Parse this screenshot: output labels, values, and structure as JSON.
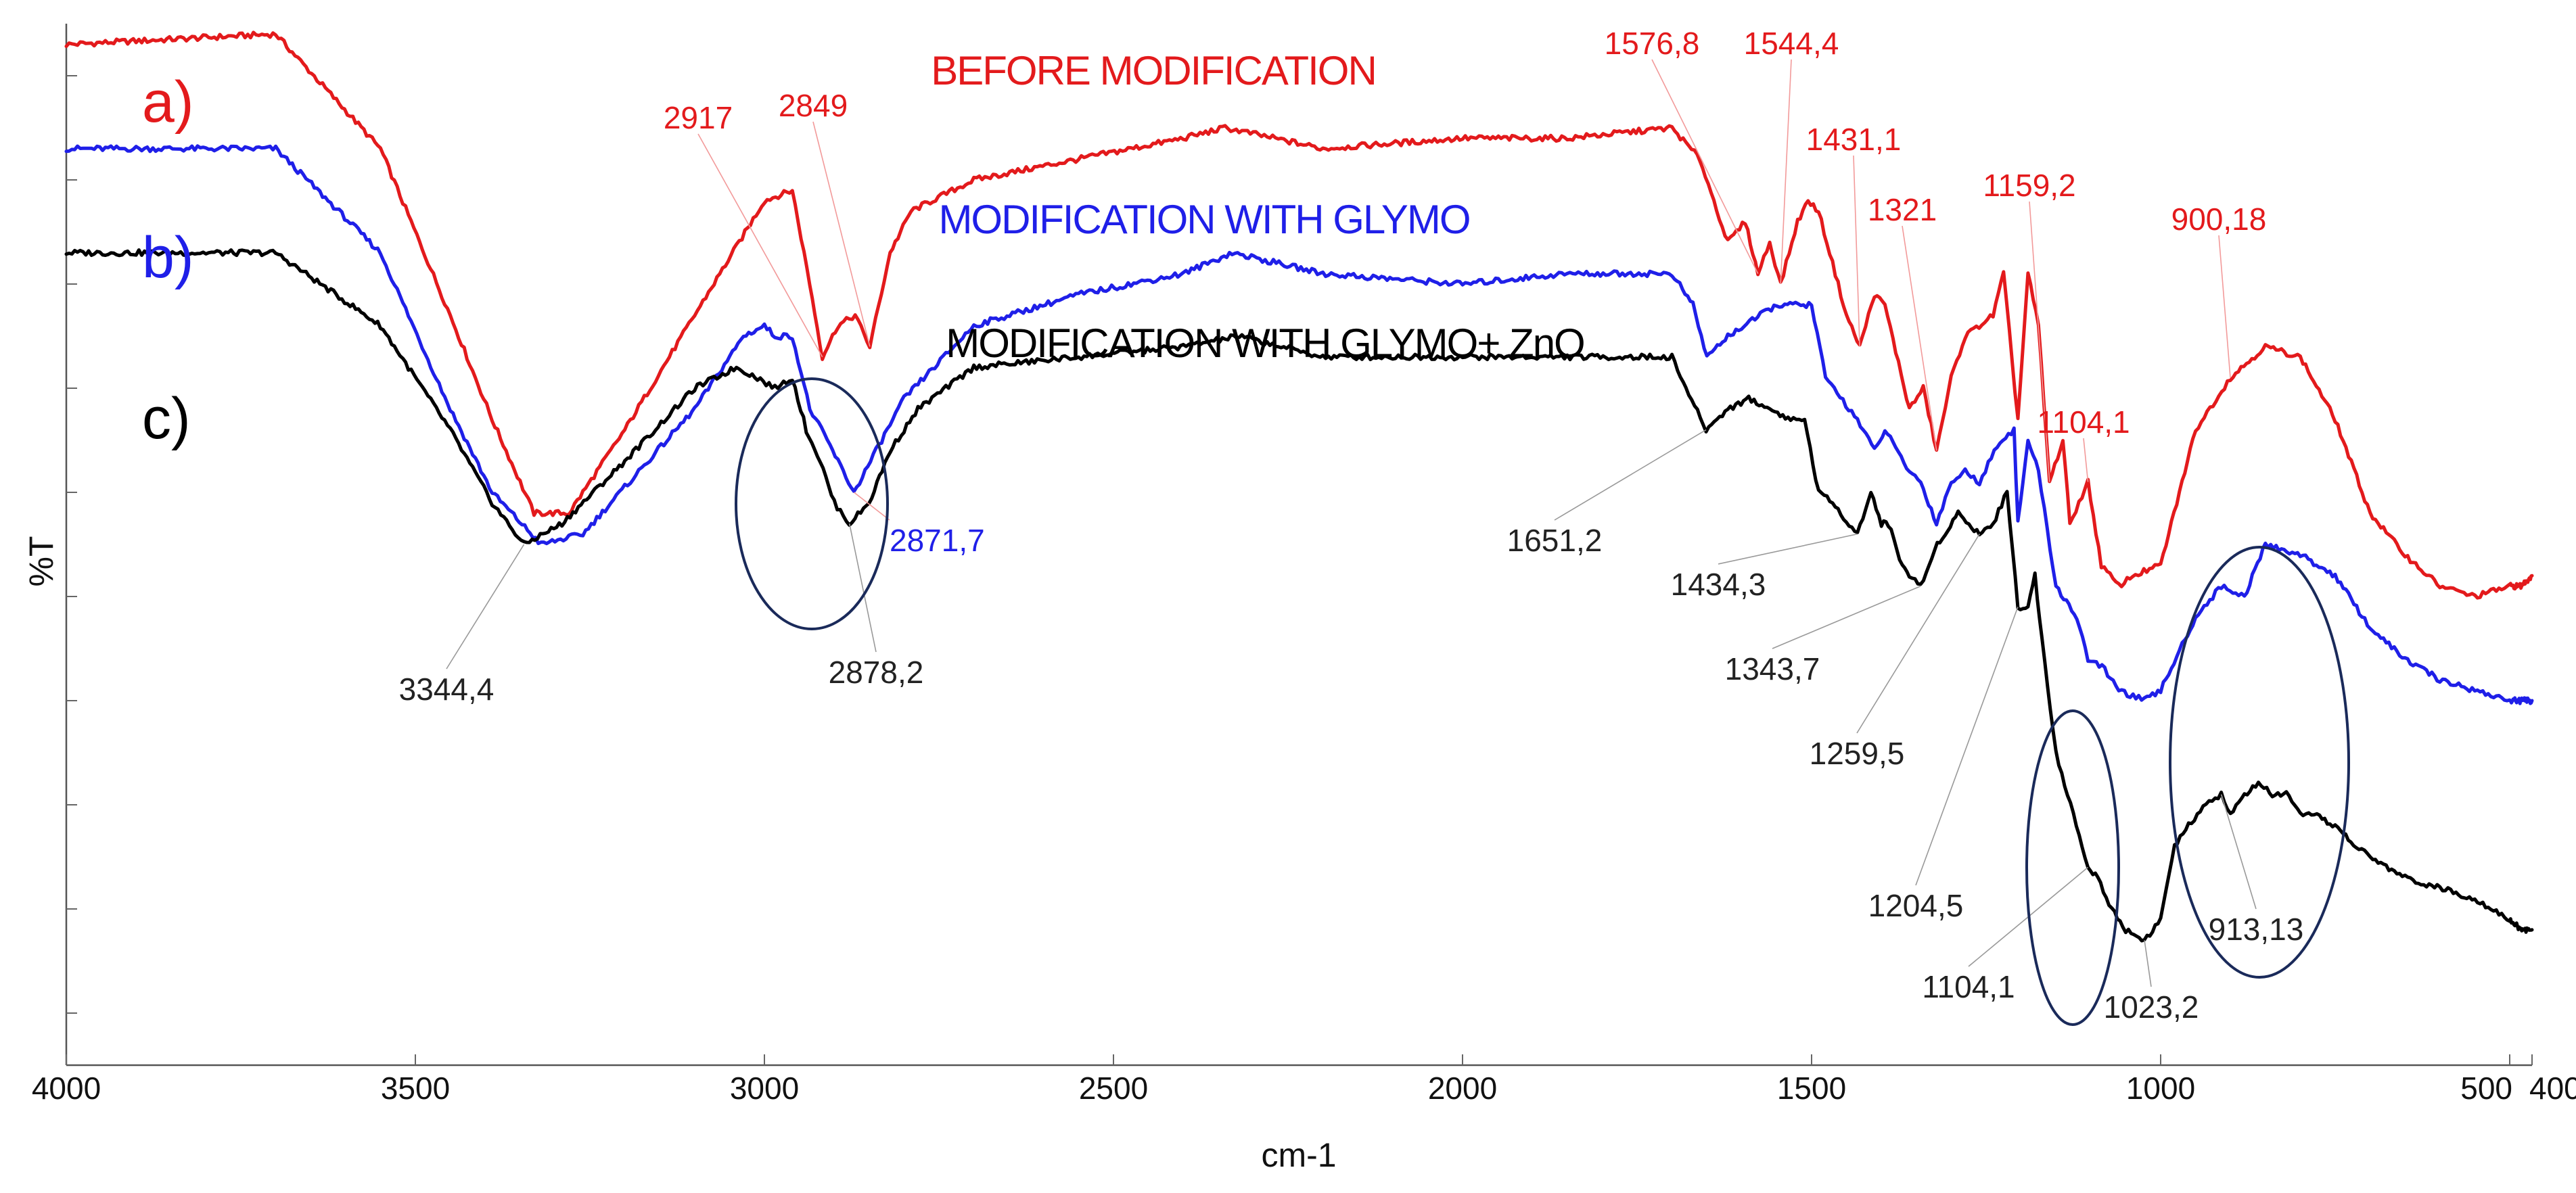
{
  "chart_data": {
    "type": "line",
    "xlabel": "cm-1",
    "ylabel": "%T",
    "xlim": [
      4000,
      400
    ],
    "x_ticks": [
      {
        "value": 4000,
        "label": "4000"
      },
      {
        "value": 3500,
        "label": "3500"
      },
      {
        "value": 3000,
        "label": "3000"
      },
      {
        "value": 2500,
        "label": "2500"
      },
      {
        "value": 2000,
        "label": "2000"
      },
      {
        "value": 1500,
        "label": "1500"
      },
      {
        "value": 1000,
        "label": "1000"
      },
      {
        "value": 500,
        "label": "500"
      },
      {
        "value": 400,
        "label": "400"
      }
    ],
    "series": [
      {
        "key": "a",
        "name": "BEFORE MODIFICATION",
        "label": "a)",
        "color": "#e31a1c",
        "points": [
          [
            4000,
            98
          ],
          [
            3700,
            99
          ],
          [
            3550,
            88
          ],
          [
            3450,
            72
          ],
          [
            3390,
            62
          ],
          [
            3330,
            53
          ],
          [
            3280,
            53
          ],
          [
            3200,
            61
          ],
          [
            3100,
            72
          ],
          [
            3000,
            83
          ],
          [
            2960,
            84
          ],
          [
            2935,
            75
          ],
          [
            2917,
            68
          ],
          [
            2895,
            71
          ],
          [
            2870,
            72
          ],
          [
            2849,
            69
          ],
          [
            2820,
            78
          ],
          [
            2790,
            82
          ],
          [
            2700,
            85
          ],
          [
            2550,
            87
          ],
          [
            2400,
            89
          ],
          [
            2340,
            90
          ],
          [
            2200,
            88
          ],
          [
            2000,
            89
          ],
          [
            1850,
            89
          ],
          [
            1700,
            90
          ],
          [
            1660,
            87
          ],
          [
            1640,
            83
          ],
          [
            1620,
            79
          ],
          [
            1595,
            81
          ],
          [
            1576.8,
            76
          ],
          [
            1560,
            79
          ],
          [
            1544.4,
            75
          ],
          [
            1520,
            81
          ],
          [
            1505,
            83
          ],
          [
            1490,
            82
          ],
          [
            1450,
            72
          ],
          [
            1431.1,
            69
          ],
          [
            1410,
            74
          ],
          [
            1395,
            73
          ],
          [
            1360,
            63
          ],
          [
            1340,
            65
          ],
          [
            1321,
            59
          ],
          [
            1300,
            66
          ],
          [
            1280,
            70
          ],
          [
            1240,
            72
          ],
          [
            1225,
            76
          ],
          [
            1204.5,
            62
          ],
          [
            1190,
            76
          ],
          [
            1175,
            71
          ],
          [
            1159.2,
            56
          ],
          [
            1140,
            60
          ],
          [
            1130,
            52
          ],
          [
            1104.1,
            56
          ],
          [
            1085,
            48
          ],
          [
            1060,
            46
          ],
          [
            1040,
            47
          ],
          [
            1000,
            48
          ],
          [
            950,
            61
          ],
          [
            900.18,
            66
          ],
          [
            850,
            69
          ],
          [
            800,
            68
          ],
          [
            750,
            62
          ],
          [
            700,
            53
          ],
          [
            650,
            49
          ],
          [
            600,
            46
          ],
          [
            550,
            45
          ],
          [
            500,
            46
          ],
          [
            450,
            46
          ],
          [
            400,
            47
          ]
        ]
      },
      {
        "key": "b",
        "name": "MODIFICATION WITH GLYMO",
        "label": "b)",
        "color": "#1f1fe8",
        "points": [
          [
            4000,
            88
          ],
          [
            3700,
            88
          ],
          [
            3550,
            78
          ],
          [
            3450,
            63
          ],
          [
            3390,
            55
          ],
          [
            3320,
            50
          ],
          [
            3260,
            51
          ],
          [
            3180,
            57
          ],
          [
            3100,
            63
          ],
          [
            3030,
            70
          ],
          [
            3000,
            71
          ],
          [
            2985,
            70
          ],
          [
            2960,
            70
          ],
          [
            2935,
            63
          ],
          [
            2910,
            60
          ],
          [
            2871.7,
            55
          ],
          [
            2840,
            59
          ],
          [
            2800,
            64
          ],
          [
            2700,
            71
          ],
          [
            2550,
            74
          ],
          [
            2400,
            76
          ],
          [
            2330,
            78
          ],
          [
            2200,
            76
          ],
          [
            2000,
            75
          ],
          [
            1850,
            76
          ],
          [
            1700,
            76
          ],
          [
            1670,
            73
          ],
          [
            1650,
            68
          ],
          [
            1620,
            70
          ],
          [
            1550,
            73
          ],
          [
            1500,
            73
          ],
          [
            1480,
            66
          ],
          [
            1434.3,
            62
          ],
          [
            1410,
            59
          ],
          [
            1395,
            61
          ],
          [
            1360,
            57
          ],
          [
            1343.7,
            56
          ],
          [
            1321,
            52
          ],
          [
            1300,
            56
          ],
          [
            1280,
            57
          ],
          [
            1259.5,
            56
          ],
          [
            1230,
            60
          ],
          [
            1210,
            61
          ],
          [
            1204.5,
            52
          ],
          [
            1190,
            60
          ],
          [
            1175,
            57
          ],
          [
            1150,
            46
          ],
          [
            1120,
            43
          ],
          [
            1104.1,
            39
          ],
          [
            1080,
            38
          ],
          [
            1060,
            36
          ],
          [
            1023.2,
            35
          ],
          [
            1000,
            36
          ],
          [
            950,
            43
          ],
          [
            913.13,
            46
          ],
          [
            880,
            45
          ],
          [
            850,
            50
          ],
          [
            800,
            49
          ],
          [
            750,
            47
          ],
          [
            700,
            42
          ],
          [
            650,
            39
          ],
          [
            600,
            37
          ],
          [
            550,
            36
          ],
          [
            500,
            35
          ],
          [
            450,
            35
          ],
          [
            400,
            35
          ]
        ]
      },
      {
        "key": "c",
        "name": "MODIFICATION WITH GLYMO+ ZnO",
        "label": "c)",
        "color": "#000000",
        "points": [
          [
            4000,
            78
          ],
          [
            3700,
            78
          ],
          [
            3550,
            71
          ],
          [
            3450,
            61
          ],
          [
            3390,
            54
          ],
          [
            3344.4,
            50
          ],
          [
            3290,
            52
          ],
          [
            3200,
            58
          ],
          [
            3100,
            65
          ],
          [
            3040,
            67
          ],
          [
            3010,
            66
          ],
          [
            2985,
            65
          ],
          [
            2960,
            66
          ],
          [
            2940,
            61
          ],
          [
            2920,
            58
          ],
          [
            2900,
            54
          ],
          [
            2878.2,
            52
          ],
          [
            2850,
            54
          ],
          [
            2820,
            59
          ],
          [
            2780,
            63
          ],
          [
            2700,
            67
          ],
          [
            2550,
            68
          ],
          [
            2400,
            69
          ],
          [
            2320,
            70
          ],
          [
            2200,
            68
          ],
          [
            2000,
            68
          ],
          [
            1850,
            68
          ],
          [
            1700,
            68
          ],
          [
            1680,
            65
          ],
          [
            1651.2,
            61
          ],
          [
            1620,
            63
          ],
          [
            1590,
            64
          ],
          [
            1560,
            63
          ],
          [
            1530,
            62
          ],
          [
            1510,
            62
          ],
          [
            1490,
            55
          ],
          [
            1470,
            54
          ],
          [
            1434.3,
            51
          ],
          [
            1415,
            55
          ],
          [
            1400,
            52
          ],
          [
            1390,
            52
          ],
          [
            1370,
            48
          ],
          [
            1360,
            47
          ],
          [
            1343.7,
            46
          ],
          [
            1320,
            50
          ],
          [
            1290,
            53
          ],
          [
            1259.5,
            51
          ],
          [
            1240,
            52
          ],
          [
            1220,
            55
          ],
          [
            1204.5,
            44
          ],
          [
            1190,
            44
          ],
          [
            1180,
            47
          ],
          [
            1170,
            41
          ],
          [
            1150,
            30
          ],
          [
            1125,
            24
          ],
          [
            1104.1,
            19
          ],
          [
            1090,
            18
          ],
          [
            1070,
            15
          ],
          [
            1050,
            13
          ],
          [
            1023.2,
            12
          ],
          [
            1000,
            14
          ],
          [
            980,
            21
          ],
          [
            960,
            23
          ],
          [
            935,
            25
          ],
          [
            913.13,
            26
          ],
          [
            900,
            24
          ],
          [
            880,
            26
          ],
          [
            860,
            27
          ],
          [
            840,
            26
          ],
          [
            820,
            26
          ],
          [
            800,
            24
          ],
          [
            780,
            24
          ],
          [
            750,
            23
          ],
          [
            720,
            21
          ],
          [
            700,
            20
          ],
          [
            650,
            18
          ],
          [
            600,
            17
          ],
          [
            550,
            16
          ],
          [
            500,
            14
          ],
          [
            450,
            13
          ],
          [
            400,
            13
          ]
        ]
      }
    ],
    "peaks": [
      {
        "label": "2917",
        "series": "a",
        "x": 2917
      },
      {
        "label": "2849",
        "series": "a",
        "x": 2849
      },
      {
        "label": "1576,8",
        "series": "a",
        "x": 1576.8
      },
      {
        "label": "1544,4",
        "series": "a",
        "x": 1544.4
      },
      {
        "label": "1431,1",
        "series": "a",
        "x": 1431.1
      },
      {
        "label": "1321",
        "series": "a",
        "x": 1321
      },
      {
        "label": "1159,2",
        "series": "a",
        "x": 1159.2
      },
      {
        "label": "1104,1",
        "series": "a",
        "x": 1104.1
      },
      {
        "label": "900,18",
        "series": "a",
        "x": 900.18
      },
      {
        "label": "2871,7",
        "series": "b",
        "x": 2871.7
      },
      {
        "label": "3344,4",
        "series": "c",
        "x": 3344.4
      },
      {
        "label": "2878,2",
        "series": "c",
        "x": 2878.2
      },
      {
        "label": "1651,2",
        "series": "c",
        "x": 1651.2
      },
      {
        "label": "1434,3",
        "series": "c",
        "x": 1434.3
      },
      {
        "label": "1343,7",
        "series": "c",
        "x": 1343.7
      },
      {
        "label": "1259,5",
        "series": "c",
        "x": 1259.5
      },
      {
        "label": "1204,5",
        "series": "c",
        "x": 1204.5
      },
      {
        "label": "1104,1",
        "series": "c",
        "x": 1104.1
      },
      {
        "label": "1023,2",
        "series": "c",
        "x": 1023.2
      },
      {
        "label": "913,13",
        "series": "c",
        "x": 913.13
      }
    ]
  }
}
